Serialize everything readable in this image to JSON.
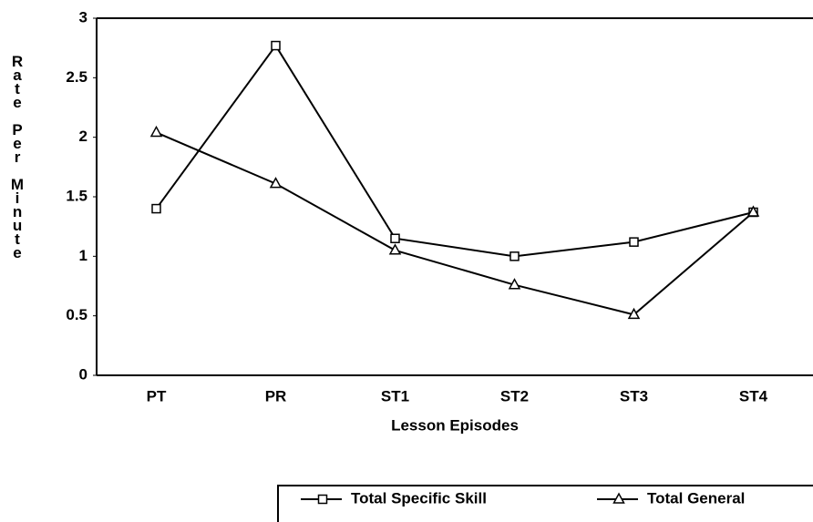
{
  "chart_data": {
    "type": "line",
    "xlabel": "Lesson Episodes",
    "ylabel": "Rate Per Minute",
    "categories": [
      "PT",
      "PR",
      "ST1",
      "ST2",
      "ST3",
      "ST4"
    ],
    "series": [
      {
        "name": "Total Specific Skill",
        "color": "#000000",
        "marker": "square",
        "values": [
          1.4,
          2.77,
          1.15,
          1.0,
          1.12,
          1.37
        ]
      },
      {
        "name": "Total General",
        "color": "#000000",
        "marker": "triangle",
        "values": [
          2.04,
          1.61,
          1.05,
          0.76,
          0.51,
          1.37
        ]
      }
    ],
    "ylim": [
      0,
      3
    ],
    "yticks": [
      0,
      {
        "value": 0.5,
        "label": "0.5"
      },
      1,
      {
        "value": 1.5,
        "label": "1.5"
      },
      2,
      {
        "value": 2.5,
        "label": "2.5"
      },
      3
    ]
  }
}
